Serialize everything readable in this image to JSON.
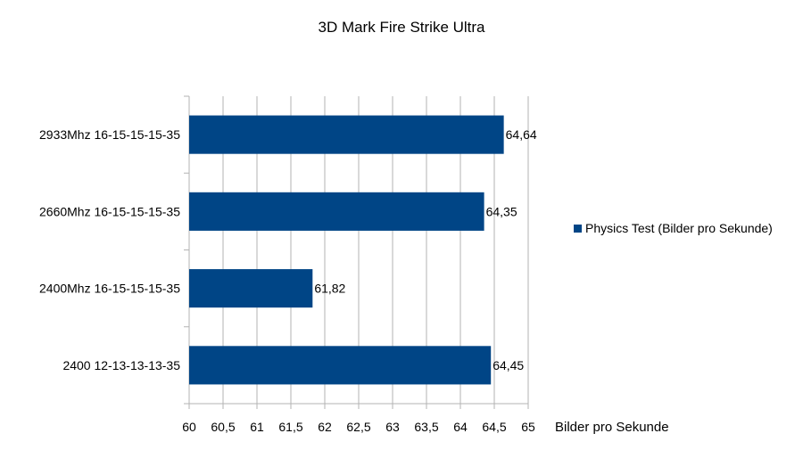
{
  "chart_data": {
    "type": "bar",
    "orientation": "horizontal",
    "title": "3D Mark Fire Strike Ultra",
    "xlabel": "Bilder pro Sekunde",
    "ylabel": "",
    "categories": [
      "2933Mhz 16-15-15-15-35",
      "2660Mhz 16-15-15-15-35",
      "2400Mhz 16-15-15-15-35",
      "2400 12-13-13-13-35"
    ],
    "series": [
      {
        "name": "Physics Test (Bilder pro Sekunde)",
        "values": [
          64.64,
          64.35,
          61.82,
          64.45
        ],
        "value_labels": [
          "64,64",
          "64,35",
          "61,82",
          "64,45"
        ],
        "color": "#004586"
      }
    ],
    "xlim": [
      60,
      65
    ],
    "xticks": [
      60,
      60.5,
      61,
      61.5,
      62,
      62.5,
      63,
      63.5,
      64,
      64.5,
      65
    ],
    "xtick_labels": [
      "60",
      "60,5",
      "61",
      "61,5",
      "62",
      "62,5",
      "63",
      "63,5",
      "64",
      "64,5",
      "65"
    ],
    "grid": true,
    "legend_position": "right"
  }
}
